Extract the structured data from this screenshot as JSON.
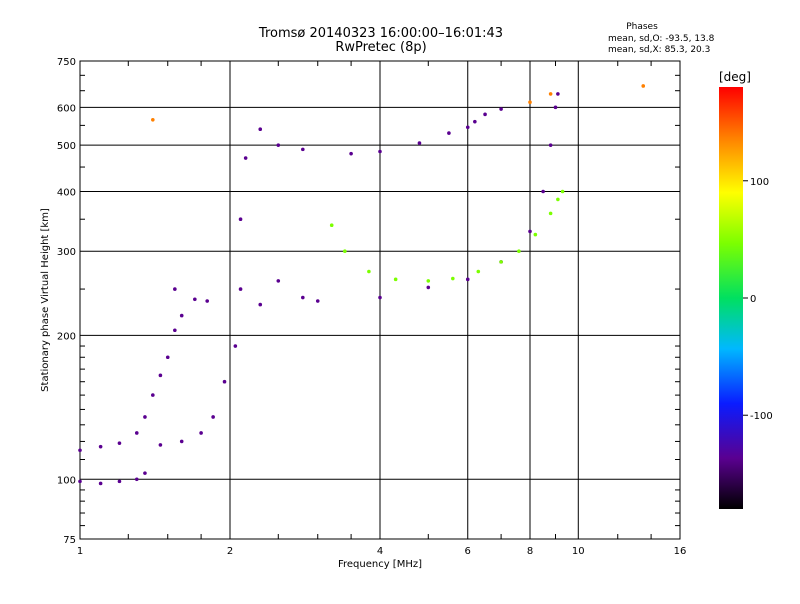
{
  "header": {
    "title_line1": "Tromsø 20140323 16:00:00–16:01:43",
    "title_line2": "RwPretec (8p)"
  },
  "phase_info": {
    "heading": "Phases",
    "line1": "mean, sd,O: -93.5, 13.8",
    "line2": "mean, sd,X:  85.3, 20.3"
  },
  "chart_data": {
    "type": "scatter",
    "title": "Tromsø 20140323 16:00:00–16:01:43",
    "subtitle": "RwPretec (8p)",
    "xlabel": "Frequency [MHz]",
    "ylabel": "Stationary phase Virtual Height [km]",
    "xscale": "log",
    "yscale": "log",
    "xlim": [
      1,
      16
    ],
    "ylim": [
      75,
      750
    ],
    "xticks": [
      1,
      2,
      4,
      6,
      8,
      10,
      16
    ],
    "xtick_labels": [
      "1",
      "2",
      "4",
      "6",
      "8",
      "10",
      "16"
    ],
    "yticks": [
      75,
      100,
      200,
      300,
      400,
      500,
      600,
      750
    ],
    "ytick_labels": [
      "75",
      "100",
      "200",
      "300",
      "400",
      "500",
      "600",
      "750"
    ],
    "grid": true,
    "colorbar": {
      "label": "[deg]",
      "range": [
        -180,
        180
      ],
      "ticks": [
        100,
        0,
        -100
      ],
      "tick_labels": [
        "100",
        "0",
        "-100"
      ]
    },
    "series": [
      {
        "phase": -100,
        "points": [
          [
            1.0,
            99
          ],
          [
            1.1,
            98
          ],
          [
            1.2,
            99
          ],
          [
            1.3,
            100
          ],
          [
            1.35,
            103
          ],
          [
            1.0,
            115
          ],
          [
            1.1,
            117
          ],
          [
            1.2,
            119
          ],
          [
            1.3,
            125
          ],
          [
            1.35,
            135
          ],
          [
            1.4,
            150
          ],
          [
            1.45,
            165
          ],
          [
            1.5,
            180
          ],
          [
            1.55,
            205
          ],
          [
            1.6,
            220
          ],
          [
            1.45,
            118
          ],
          [
            1.6,
            120
          ],
          [
            1.75,
            125
          ],
          [
            1.85,
            135
          ],
          [
            1.95,
            160
          ],
          [
            2.05,
            190
          ],
          [
            2.1,
            250
          ],
          [
            2.1,
            350
          ],
          [
            2.15,
            470
          ],
          [
            1.55,
            250
          ],
          [
            1.7,
            238
          ],
          [
            1.8,
            236
          ],
          [
            2.3,
            232
          ],
          [
            2.8,
            240
          ],
          [
            2.5,
            260
          ],
          [
            2.3,
            540
          ],
          [
            2.5,
            500
          ],
          [
            2.8,
            490
          ],
          [
            3.5,
            480
          ],
          [
            4.0,
            485
          ],
          [
            4.8,
            505
          ],
          [
            5.5,
            530
          ],
          [
            6.0,
            545
          ],
          [
            6.2,
            560
          ],
          [
            6.5,
            580
          ],
          [
            7.0,
            595
          ],
          [
            3.0,
            236
          ],
          [
            4.0,
            240
          ],
          [
            5.0,
            252
          ],
          [
            6.0,
            262
          ],
          [
            7.0,
            285
          ],
          [
            8.0,
            330
          ],
          [
            8.5,
            400
          ],
          [
            8.8,
            500
          ],
          [
            9.0,
            600
          ],
          [
            9.1,
            640
          ]
        ]
      },
      {
        "phase": 85,
        "points": [
          [
            3.2,
            340
          ],
          [
            3.4,
            300
          ],
          [
            3.8,
            272
          ],
          [
            4.3,
            262
          ],
          [
            5.0,
            260
          ],
          [
            5.6,
            263
          ],
          [
            6.3,
            272
          ],
          [
            7.0,
            285
          ],
          [
            7.6,
            300
          ],
          [
            8.2,
            325
          ],
          [
            8.8,
            360
          ],
          [
            9.1,
            385
          ],
          [
            9.3,
            400
          ]
        ]
      },
      {
        "phase": 150,
        "points": [
          [
            8.0,
            615
          ],
          [
            8.8,
            640
          ],
          [
            1.4,
            565
          ],
          [
            13.5,
            665
          ]
        ]
      }
    ]
  }
}
